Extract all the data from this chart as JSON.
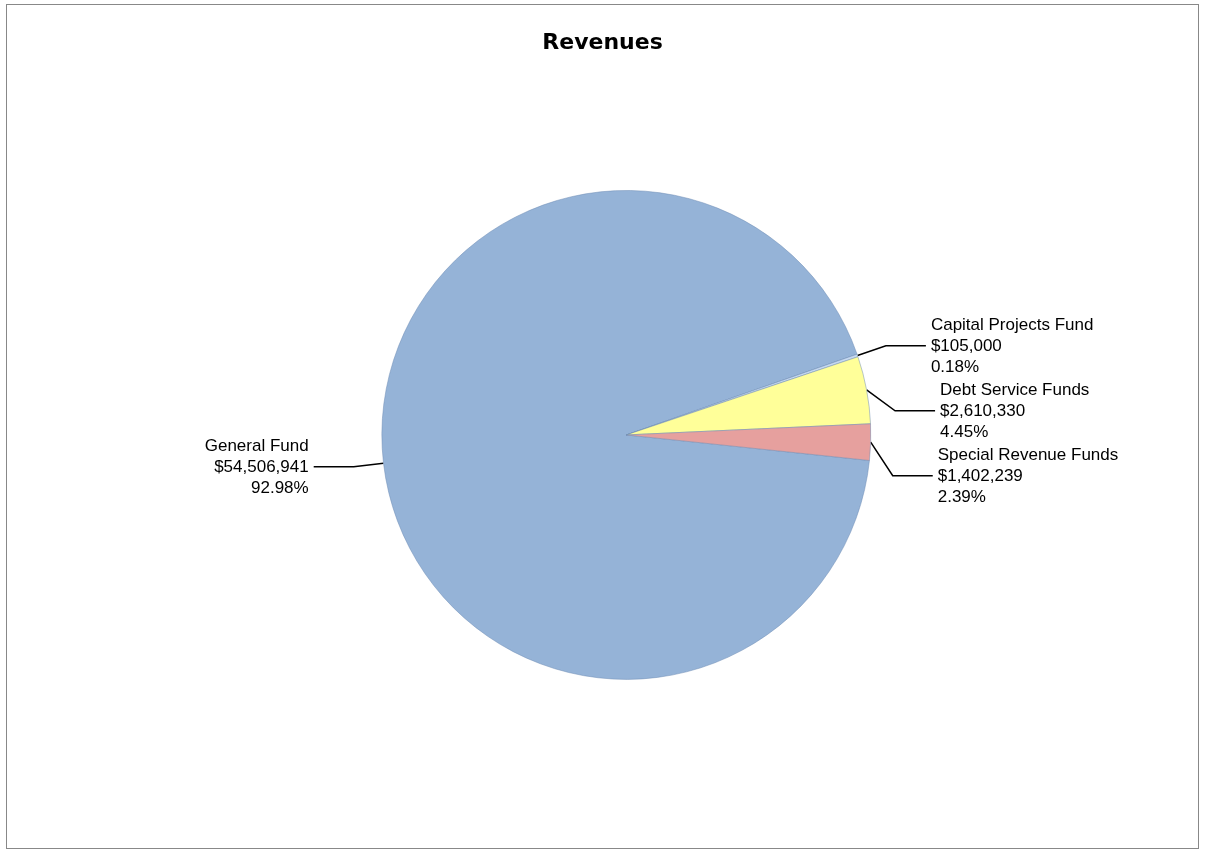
{
  "chart_data": {
    "type": "pie",
    "title": "Revenues",
    "categories": [
      "General Fund",
      "Capital Projects Fund",
      "Debt Service Funds",
      "Special Revenue Funds"
    ],
    "values": [
      54506941,
      105000,
      2610330,
      1402239
    ],
    "value_labels": [
      "$54,506,941\n92.98%",
      "$105,000\n0.18%",
      "$2,610,330\n4.45%",
      "$1,402,239\n2.39%"
    ],
    "colors": [
      "#95b3d7",
      "#c6d9f1",
      "#ffff99",
      "#e6a09e"
    ],
    "legend": false
  }
}
